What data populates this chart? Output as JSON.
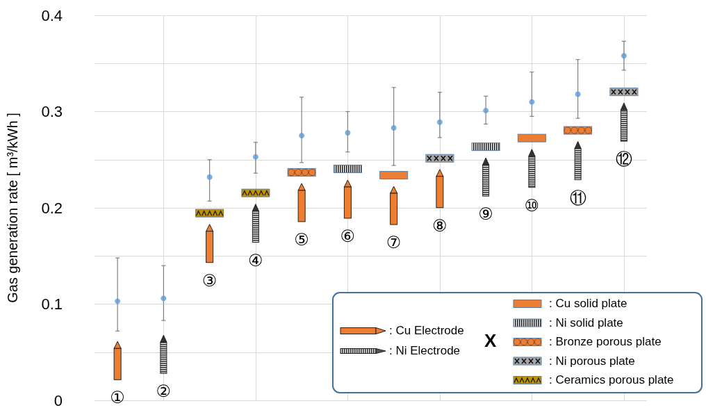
{
  "chart_data": {
    "type": "scatter",
    "ylabel": "Gas generation rate [ m³/kWh ]",
    "categories": [
      "①",
      "②",
      "③",
      "④",
      "⑤",
      "⑥",
      "⑦",
      "⑧",
      "⑨",
      "⑩",
      "⑪",
      "⑫"
    ],
    "values": [
      0.103,
      0.106,
      0.232,
      0.253,
      0.275,
      0.278,
      0.283,
      0.289,
      0.301,
      0.31,
      0.318,
      0.358
    ],
    "errors": [
      [
        0.072,
        0.148
      ],
      [
        0.083,
        0.14
      ],
      [
        0.207,
        0.25
      ],
      [
        0.236,
        0.268
      ],
      [
        0.247,
        0.315
      ],
      [
        0.258,
        0.3
      ],
      [
        0.244,
        0.325
      ],
      [
        0.273,
        0.32
      ],
      [
        0.287,
        0.316
      ],
      [
        0.295,
        0.341
      ],
      [
        0.293,
        0.354
      ],
      [
        0.343,
        0.373
      ]
    ],
    "color": "#5b9bd5",
    "marker": "circle",
    "ylim": [
      0,
      0.4
    ],
    "yticks": [
      0,
      {
        "value": 0.05,
        "label": null
      },
      0.1,
      {
        "value": 0.15,
        "label": null
      },
      0.2,
      {
        "value": 0.25,
        "label": null
      },
      0.3,
      {
        "value": 0.35,
        "label": null
      },
      0.4
    ],
    "grid": true,
    "tick_labels": "y",
    "annotations": [
      ": Cu Electrode",
      ": Ni Electrode",
      "X",
      ": Cu solid plate",
      ": Ni solid plate",
      ": Bronze porous plate",
      ": Ni porous plate",
      ": Ceramics porous plate"
    ]
  }
}
